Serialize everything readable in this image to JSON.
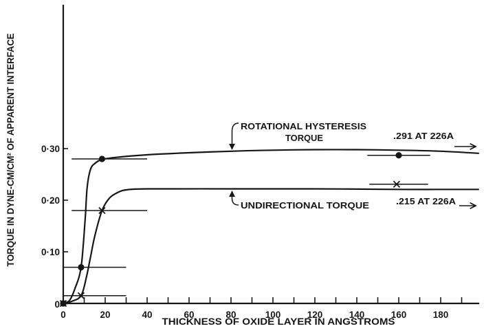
{
  "chart_data": {
    "type": "line",
    "xlabel": "THICKNESS OF OXIDE LAYER IN ANGSTROMS",
    "ylabel": "TORQUE IN DYNE-CM/CM² OF APPARENT INTERFACE",
    "xlim": [
      0,
      198
    ],
    "ylim": [
      0,
      0.58
    ],
    "xticks": [
      0,
      20,
      40,
      60,
      80,
      100,
      120,
      140,
      160,
      180
    ],
    "xtick_labels": [
      "0",
      "20",
      "40",
      "60",
      "80",
      "100",
      "120",
      "140",
      "160",
      "180"
    ],
    "xminor_step": 10,
    "yticks": [
      0,
      0.1,
      0.2,
      0.3
    ],
    "ytick_labels": [
      "0",
      "0·10",
      "0·20",
      "0·30"
    ],
    "grid": false,
    "series": [
      {
        "label_lines": [
          "ROTATIONAL HYSTERESIS",
          "TORQUE"
        ],
        "note": ".291 AT 226A",
        "marker": "circle",
        "color": "#161616",
        "points": [
          {
            "x": 0,
            "y": 0
          },
          {
            "x": 8.5,
            "y": 0.07,
            "xrange": [
              0,
              30
            ]
          },
          {
            "x": 18.5,
            "y": 0.28,
            "xrange": [
              4,
              40
            ]
          },
          {
            "x": 160,
            "y": 0.287,
            "xrange": [
              145,
              175
            ]
          }
        ],
        "curve": [
          [
            0,
            0
          ],
          [
            3,
            0.006
          ],
          [
            5.5,
            0.028
          ],
          [
            8.5,
            0.07
          ],
          [
            10.4,
            0.16
          ],
          [
            11.4,
            0.225
          ],
          [
            13,
            0.26
          ],
          [
            15.3,
            0.272
          ],
          [
            18.5,
            0.279
          ],
          [
            25,
            0.283
          ],
          [
            40,
            0.288
          ],
          [
            60,
            0.292
          ],
          [
            80,
            0.295
          ],
          [
            100,
            0.297
          ],
          [
            120,
            0.298
          ],
          [
            140,
            0.298
          ],
          [
            160,
            0.297
          ],
          [
            180,
            0.295
          ],
          [
            198,
            0.291
          ]
        ]
      },
      {
        "label_lines": [
          "UNDIRECTIONAL TORQUE"
        ],
        "note": ".215 AT 226A",
        "marker": "cross",
        "color": "#161616",
        "points": [
          {
            "x": 0,
            "y": 0
          },
          {
            "x": 8.5,
            "y": 0.015,
            "xrange": [
              0,
              30
            ]
          },
          {
            "x": 18.5,
            "y": 0.18,
            "xrange": [
              4,
              40
            ]
          },
          {
            "x": 159,
            "y": 0.231,
            "xrange": [
              146,
              174
            ]
          }
        ],
        "curve": [
          [
            0,
            0
          ],
          [
            4,
            0.004
          ],
          [
            8.5,
            0.015
          ],
          [
            11,
            0.05
          ],
          [
            13,
            0.09
          ],
          [
            15,
            0.13
          ],
          [
            18.5,
            0.18
          ],
          [
            22,
            0.204
          ],
          [
            26,
            0.215
          ],
          [
            30,
            0.22
          ],
          [
            40,
            0.222
          ],
          [
            80,
            0.222
          ],
          [
            120,
            0.222
          ],
          [
            160,
            0.221
          ],
          [
            198,
            0.221
          ]
        ]
      }
    ]
  }
}
